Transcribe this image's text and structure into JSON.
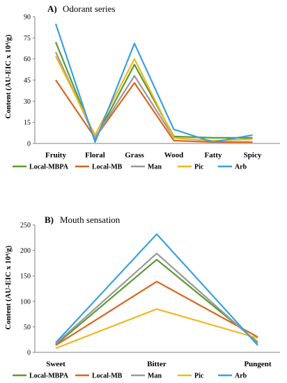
{
  "chart_data": [
    {
      "type": "line",
      "panel_letter": "A)",
      "title": "Odorant series",
      "ylabel": "Content (AU-EIC x 10⁴/g)",
      "xlabel": "",
      "ylim": [
        0,
        90
      ],
      "yticks": [
        0,
        15,
        30,
        45,
        60,
        75,
        90
      ],
      "grid": false,
      "legend_position": "bottom",
      "categories": [
        "Fruity",
        "Floral",
        "Grass",
        "Wood",
        "Fatty",
        "Spicy"
      ],
      "series": [
        {
          "name": "Local-MBPA",
          "color": "#5b9b2f",
          "values": [
            72,
            3,
            56,
            5,
            4,
            4
          ]
        },
        {
          "name": "Local-MB",
          "color": "#d9651f",
          "values": [
            45,
            4,
            43,
            2,
            1,
            1
          ]
        },
        {
          "name": "Man",
          "color": "#9a9a9a",
          "values": [
            65,
            4,
            48,
            4,
            2,
            3
          ]
        },
        {
          "name": "Pic",
          "color": "#f0b820",
          "values": [
            62,
            6,
            60,
            4,
            2,
            3
          ]
        },
        {
          "name": "Arb",
          "color": "#3ba0de",
          "values": [
            85,
            1,
            71,
            10,
            1,
            6
          ]
        }
      ]
    },
    {
      "type": "line",
      "panel_letter": "B)",
      "title": "Mouth sensation",
      "ylabel": "Content (AU-EIC x 10⁴/g)",
      "xlabel": "",
      "ylim": [
        0,
        250
      ],
      "yticks": [
        0,
        50,
        100,
        150,
        200,
        250
      ],
      "grid": false,
      "legend_position": "bottom",
      "categories": [
        "Sweet",
        "Bitter",
        "Pungent"
      ],
      "series": [
        {
          "name": "Local-MBPA",
          "color": "#5b9b2f",
          "values": [
            15,
            182,
            20
          ]
        },
        {
          "name": "Local-MB",
          "color": "#d9651f",
          "values": [
            14,
            139,
            30
          ]
        },
        {
          "name": "Man",
          "color": "#9a9a9a",
          "values": [
            17,
            194,
            18
          ]
        },
        {
          "name": "Pic",
          "color": "#f0b820",
          "values": [
            8,
            85,
            28
          ]
        },
        {
          "name": "Arb",
          "color": "#3ba0de",
          "values": [
            19,
            232,
            14
          ]
        }
      ]
    }
  ]
}
